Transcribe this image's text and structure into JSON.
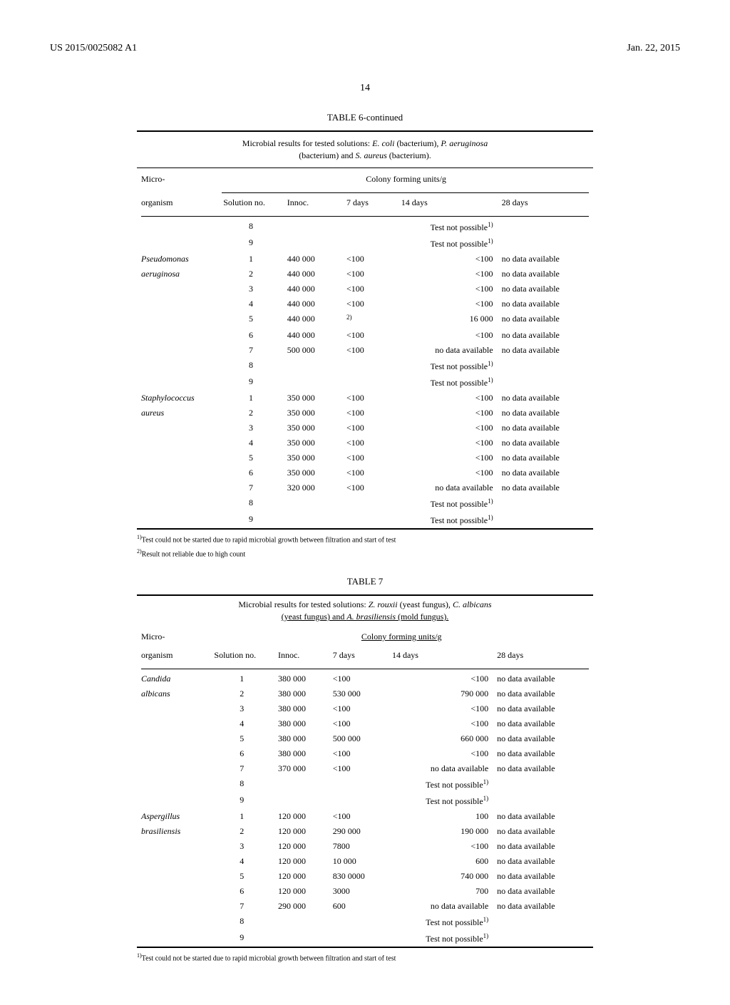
{
  "header": {
    "doc_number": "US 2015/0025082 A1",
    "date": "Jan. 22, 2015",
    "page_number": "14"
  },
  "table6": {
    "title": "TABLE 6-continued",
    "caption_line1": "Microbial results for tested solutions: ",
    "caption_species1": "E. coli",
    "caption_mid1": " (bacterium), ",
    "caption_species2": "P. aeruginosa",
    "caption_line2_pre": "(bacterium) and ",
    "caption_species3": "S. aureus",
    "caption_line2_post": " (bacterium).",
    "col_micro": "Micro-",
    "col_organism": "organism",
    "col_cfu": "Colony forming units/g",
    "col_sol": "Solution no.",
    "col_innoc": "Innoc.",
    "col_7d": "7 days",
    "col_14d": "14 days",
    "col_28d": "28 days",
    "footnote1_marker": "1)",
    "footnote1": "Test could not be started due to rapid microbial growth between filtration and start of test",
    "footnote2_marker": "2)",
    "footnote2": "Result not reliable due to high count",
    "test_not_possible": "Test not possible",
    "no_data": "no data available",
    "rows": [
      {
        "org": "",
        "sol": "8",
        "inn": "",
        "d7": "",
        "d14": "TNP",
        "d28": ""
      },
      {
        "org": "",
        "sol": "9",
        "inn": "",
        "d7": "",
        "d14": "TNP",
        "d28": ""
      },
      {
        "org": "Pseudomonas",
        "sol": "1",
        "inn": "440 000",
        "d7": "<100",
        "d14": "<100",
        "d28": "no data available"
      },
      {
        "org": "aeruginosa",
        "sol": "2",
        "inn": "440 000",
        "d7": "<100",
        "d14": "<100",
        "d28": "no data available"
      },
      {
        "org": "",
        "sol": "3",
        "inn": "440 000",
        "d7": "<100",
        "d14": "<100",
        "d28": "no data available"
      },
      {
        "org": "",
        "sol": "4",
        "inn": "440 000",
        "d7": "<100",
        "d14": "<100",
        "d28": "no data available"
      },
      {
        "org": "",
        "sol": "5",
        "inn": "440 000",
        "d7": "SUP2",
        "d14": "16 000",
        "d28": "no data available"
      },
      {
        "org": "",
        "sol": "6",
        "inn": "440 000",
        "d7": "<100",
        "d14": "<100",
        "d28": "no data available"
      },
      {
        "org": "",
        "sol": "7",
        "inn": "500 000",
        "d7": "<100",
        "d14": "no data available",
        "d28": "no data available"
      },
      {
        "org": "",
        "sol": "8",
        "inn": "",
        "d7": "",
        "d14": "TNP",
        "d28": ""
      },
      {
        "org": "",
        "sol": "9",
        "inn": "",
        "d7": "",
        "d14": "TNP",
        "d28": ""
      },
      {
        "org": "Staphylococcus",
        "sol": "1",
        "inn": "350 000",
        "d7": "<100",
        "d14": "<100",
        "d28": "no data available"
      },
      {
        "org": "aureus",
        "sol": "2",
        "inn": "350 000",
        "d7": "<100",
        "d14": "<100",
        "d28": "no data available"
      },
      {
        "org": "",
        "sol": "3",
        "inn": "350 000",
        "d7": "<100",
        "d14": "<100",
        "d28": "no data available"
      },
      {
        "org": "",
        "sol": "4",
        "inn": "350 000",
        "d7": "<100",
        "d14": "<100",
        "d28": "no data available"
      },
      {
        "org": "",
        "sol": "5",
        "inn": "350 000",
        "d7": "<100",
        "d14": "<100",
        "d28": "no data available"
      },
      {
        "org": "",
        "sol": "6",
        "inn": "350 000",
        "d7": "<100",
        "d14": "<100",
        "d28": "no data available"
      },
      {
        "org": "",
        "sol": "7",
        "inn": "320 000",
        "d7": "<100",
        "d14": "no data available",
        "d28": "no data available"
      },
      {
        "org": "",
        "sol": "8",
        "inn": "",
        "d7": "",
        "d14": "TNP",
        "d28": ""
      },
      {
        "org": "",
        "sol": "9",
        "inn": "",
        "d7": "",
        "d14": "TNP",
        "d28": ""
      }
    ]
  },
  "table7": {
    "title": "TABLE 7",
    "caption_line1": "Microbial results for tested solutions: ",
    "caption_species1": "Z. rouxii",
    "caption_mid1": " (yeast fungus), ",
    "caption_species2": "C. albicans",
    "caption_line2_pre": "(yeast fungus) and ",
    "caption_species3": "A. brasiliensis",
    "caption_line2_post": " (mold fungus).",
    "footnote1_marker": "1)",
    "footnote1": "Test could not be started due to rapid microbial growth between filtration and start of test",
    "rows": [
      {
        "org": "Candida",
        "sol": "1",
        "inn": "380 000",
        "d7": "<100",
        "d14": "<100",
        "d28": "no data available"
      },
      {
        "org": "albicans",
        "sol": "2",
        "inn": "380 000",
        "d7": "530 000",
        "d14": "790 000",
        "d28": "no data available"
      },
      {
        "org": "",
        "sol": "3",
        "inn": "380 000",
        "d7": "<100",
        "d14": "<100",
        "d28": "no data available"
      },
      {
        "org": "",
        "sol": "4",
        "inn": "380 000",
        "d7": "<100",
        "d14": "<100",
        "d28": "no data available"
      },
      {
        "org": "",
        "sol": "5",
        "inn": "380 000",
        "d7": "500 000",
        "d14": "660 000",
        "d28": "no data available"
      },
      {
        "org": "",
        "sol": "6",
        "inn": "380 000",
        "d7": "<100",
        "d14": "<100",
        "d28": "no data available"
      },
      {
        "org": "",
        "sol": "7",
        "inn": "370 000",
        "d7": "<100",
        "d14": "no data available",
        "d28": "no data available"
      },
      {
        "org": "",
        "sol": "8",
        "inn": "",
        "d7": "",
        "d14": "TNP",
        "d28": ""
      },
      {
        "org": "",
        "sol": "9",
        "inn": "",
        "d7": "",
        "d14": "TNP",
        "d28": ""
      },
      {
        "org": "Aspergillus",
        "sol": "1",
        "inn": "120 000",
        "d7": "<100",
        "d14": "100",
        "d28": "no data available"
      },
      {
        "org": "brasiliensis",
        "sol": "2",
        "inn": "120 000",
        "d7": "290 000",
        "d14": "190 000",
        "d28": "no data available"
      },
      {
        "org": "",
        "sol": "3",
        "inn": "120 000",
        "d7": "7800",
        "d14": "<100",
        "d28": "no data available"
      },
      {
        "org": "",
        "sol": "4",
        "inn": "120 000",
        "d7": "10 000",
        "d14": "600",
        "d28": "no data available"
      },
      {
        "org": "",
        "sol": "5",
        "inn": "120 000",
        "d7": "830 0000",
        "d14": "740 000",
        "d28": "no data available"
      },
      {
        "org": "",
        "sol": "6",
        "inn": "120 000",
        "d7": "3000",
        "d14": "700",
        "d28": "no data available"
      },
      {
        "org": "",
        "sol": "7",
        "inn": "290 000",
        "d7": "600",
        "d14": "no data available",
        "d28": "no data available"
      },
      {
        "org": "",
        "sol": "8",
        "inn": "",
        "d7": "",
        "d14": "TNP",
        "d28": ""
      },
      {
        "org": "",
        "sol": "9",
        "inn": "",
        "d7": "",
        "d14": "TNP",
        "d28": ""
      }
    ]
  }
}
